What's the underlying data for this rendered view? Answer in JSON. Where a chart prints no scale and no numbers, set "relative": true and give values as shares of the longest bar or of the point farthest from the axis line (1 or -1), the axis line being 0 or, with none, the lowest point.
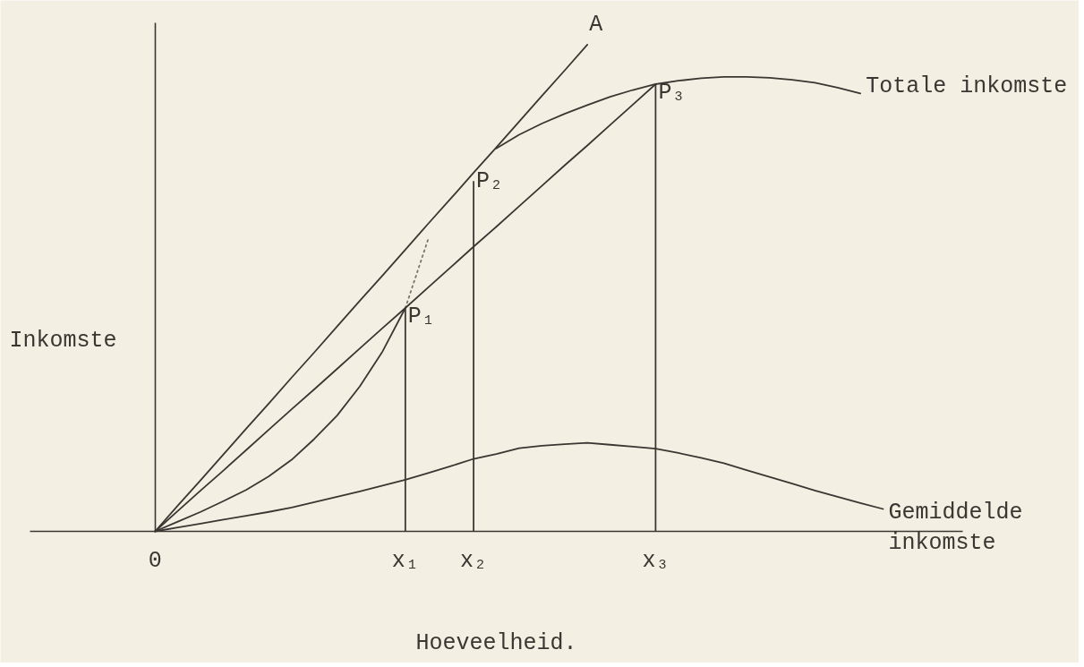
{
  "chart_data": {
    "type": "line",
    "relative": true,
    "xlabel": "Hoeveelheid.",
    "ylabel": "Inkomste",
    "categories": [
      null,
      null,
      null,
      null,
      null,
      "0",
      null,
      null,
      null,
      null,
      null,
      null,
      null,
      null,
      null,
      null,
      "x₁",
      null,
      null,
      "x₂",
      null,
      null,
      null,
      null,
      null,
      null,
      null,
      "x₃",
      null,
      null,
      null,
      null,
      null,
      null,
      null,
      null,
      null,
      null,
      null,
      null,
      null
    ],
    "series": [
      {
        "name": "Totale inkomste",
        "color": "#3b3631",
        "values": [
          null,
          null,
          null,
          null,
          null,
          0,
          0.02,
          0.04,
          0.062,
          0.085,
          0.113,
          0.147,
          0.19,
          0.238,
          0.298,
          0.37,
          0.459,
          null,
          null,
          null,
          0.787,
          0.815,
          0.838,
          0.858,
          0.876,
          0.893,
          0.907,
          0.919,
          0.926,
          0.931,
          0.934,
          0.934,
          0.932,
          0.928,
          0.922,
          0.912,
          0.9,
          null,
          null,
          null,
          null
        ]
      },
      {
        "color": "#7a746b",
        "line_style": "dotted",
        "values": [
          null,
          null,
          null,
          null,
          null,
          null,
          null,
          null,
          null,
          null,
          null,
          null,
          null,
          null,
          null,
          null,
          0.459,
          0.6,
          null,
          null,
          null,
          null,
          null,
          null,
          null,
          null,
          null,
          null,
          null,
          null,
          null,
          null,
          null,
          null,
          null,
          null,
          null,
          null,
          null,
          null,
          null
        ]
      },
      {
        "name": "A",
        "color": "#3b3631",
        "values": [
          null,
          null,
          null,
          null,
          null,
          0,
          0.053,
          0.105,
          0.158,
          0.211,
          0.263,
          0.316,
          0.368,
          0.421,
          0.474,
          0.526,
          0.579,
          0.632,
          0.684,
          0.737,
          0.789,
          0.842,
          0.895,
          0.947,
          1.0,
          null,
          null,
          null,
          null,
          null,
          null,
          null,
          null,
          null,
          null,
          null,
          null,
          null,
          null,
          null,
          null
        ]
      },
      {
        "color": "#3b3631",
        "values": [
          null,
          null,
          null,
          null,
          null,
          0,
          0.042,
          0.084,
          0.125,
          0.167,
          0.209,
          0.251,
          0.292,
          0.334,
          0.376,
          0.418,
          0.459,
          0.501,
          0.543,
          0.585,
          0.626,
          0.668,
          0.71,
          0.752,
          0.793,
          0.835,
          0.877,
          0.919,
          null,
          null,
          null,
          null,
          null,
          null,
          null,
          null,
          null,
          null,
          null,
          null,
          null
        ]
      },
      {
        "name": "Gemiddelde inkomste",
        "color": "#3b3631",
        "values": [
          null,
          null,
          null,
          null,
          null,
          0,
          0.008,
          0.016,
          0.024,
          0.032,
          0.04,
          0.049,
          0.06,
          0.071,
          0.082,
          0.094,
          0.106,
          0.12,
          0.134,
          0.149,
          0.159,
          0.171,
          0.176,
          0.179,
          0.182,
          0.178,
          0.174,
          0.17,
          0.161,
          0.151,
          0.14,
          0.126,
          0.112,
          0.098,
          0.084,
          0.071,
          0.058,
          0.046,
          null,
          null,
          null
        ]
      },
      {
        "type": "bar",
        "color": "#3b3631",
        "values": [
          null,
          null,
          null,
          null,
          null,
          null,
          null,
          null,
          null,
          null,
          null,
          null,
          null,
          null,
          null,
          null,
          0.459,
          null,
          null,
          0.72,
          null,
          null,
          null,
          null,
          null,
          null,
          null,
          0.919,
          null,
          null,
          null,
          null,
          null,
          null,
          null,
          null,
          null,
          null,
          null,
          null,
          null
        ]
      }
    ],
    "annotations": [
      {
        "text": "P₁",
        "x": "x₁",
        "y": 0.459
      },
      {
        "text": "P₂",
        "x": "x₂",
        "y": 0.737
      },
      {
        "text": "P₃",
        "x": "x₃",
        "y": 0.919
      }
    ]
  }
}
